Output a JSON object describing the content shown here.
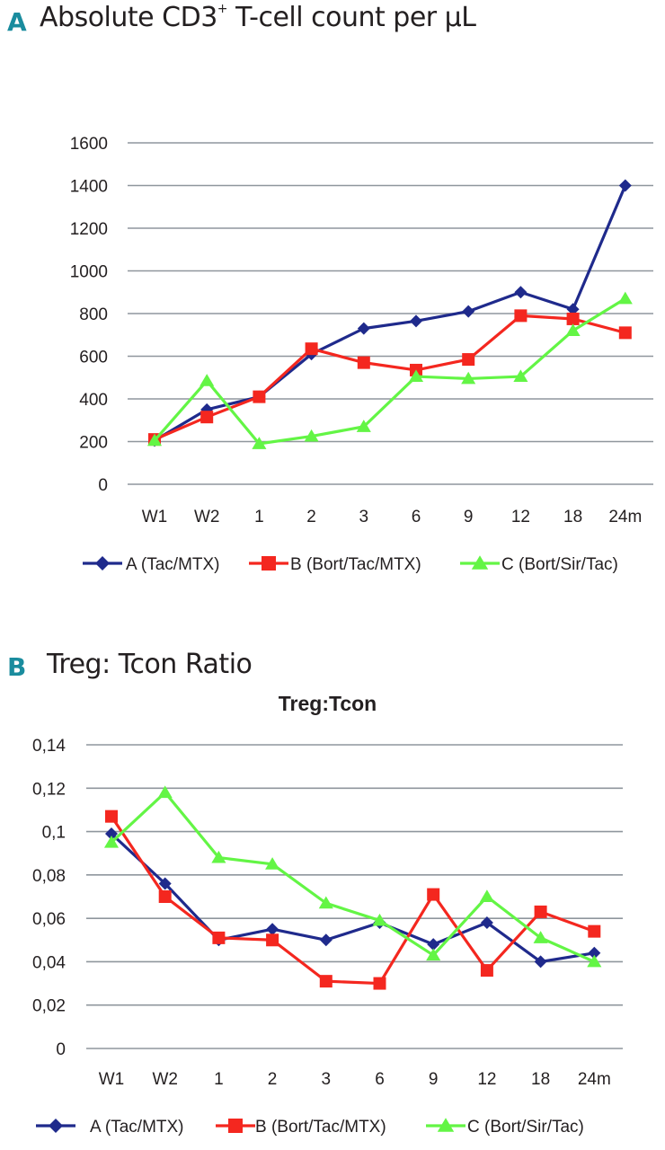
{
  "panel_a": {
    "letter": "A",
    "title_prefix": "Absolute CD3",
    "title_sup": "+",
    "title_suffix": " T-cell count per µL"
  },
  "panel_b": {
    "letter": "B",
    "title": "Treg: Tcon Ratio"
  },
  "colors": {
    "A": "#1f2a8c",
    "B": "#f4271f",
    "C": "#63f545"
  },
  "chart_data": [
    {
      "type": "line",
      "title": "Absolute CD3+ T-cell count per µL",
      "categories": [
        "W1",
        "W2",
        "1",
        "2",
        "3",
        "6",
        "9",
        "12",
        "18",
        "24m"
      ],
      "ylim": [
        0,
        1600
      ],
      "yticks": [
        "0",
        "200",
        "400",
        "600",
        "800",
        "1000",
        "1200",
        "1400",
        "1600"
      ],
      "ytick_values": [
        0,
        200,
        400,
        600,
        800,
        1000,
        1200,
        1400,
        1600
      ],
      "grid": true,
      "legend": "bottom",
      "series": [
        {
          "name": "A (Tac/MTX)",
          "marker": "diamond",
          "values": [
            205,
            350,
            410,
            610,
            730,
            765,
            810,
            900,
            820,
            1400
          ]
        },
        {
          "name": "B (Bort/Tac/MTX)",
          "marker": "square",
          "values": [
            210,
            315,
            410,
            635,
            570,
            535,
            585,
            790,
            775,
            710
          ]
        },
        {
          "name": "C (Bort/Sir/Tac)",
          "marker": "triangle",
          "values": [
            205,
            485,
            190,
            225,
            270,
            505,
            495,
            505,
            720,
            870
          ]
        }
      ]
    },
    {
      "type": "line",
      "title": "Treg:Tcon",
      "categories": [
        "W1",
        "W2",
        "1",
        "2",
        "3",
        "6",
        "9",
        "12",
        "18",
        "24m"
      ],
      "ylim": [
        0,
        0.14
      ],
      "yticks": [
        "0",
        "0,02",
        "0,04",
        "0,06",
        "0,08",
        "0,1",
        "0,12",
        "0,14"
      ],
      "ytick_values": [
        0,
        0.02,
        0.04,
        0.06,
        0.08,
        0.1,
        0.12,
        0.14
      ],
      "grid": true,
      "legend": "bottom",
      "series": [
        {
          "name": "A (Tac/MTX)",
          "marker": "diamond",
          "values": [
            0.099,
            0.076,
            0.05,
            0.055,
            0.05,
            0.058,
            0.048,
            0.058,
            0.04,
            0.044
          ]
        },
        {
          "name": "B (Bort/Tac/MTX)",
          "marker": "square",
          "values": [
            0.107,
            0.07,
            0.051,
            0.05,
            0.031,
            0.03,
            0.071,
            0.036,
            0.063,
            0.054
          ]
        },
        {
          "name": "C (Bort/Sir/Tac)",
          "marker": "triangle",
          "values": [
            0.095,
            0.118,
            0.088,
            0.085,
            0.067,
            0.059,
            0.043,
            0.07,
            0.051,
            0.04
          ]
        }
      ]
    }
  ]
}
